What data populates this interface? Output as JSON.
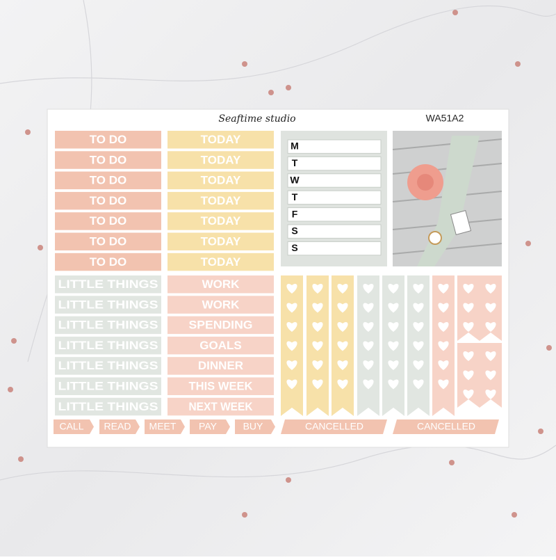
{
  "header": {
    "brand": "Seaftime studio",
    "code": "WA51A2"
  },
  "to_do": [
    "TO DO",
    "TO DO",
    "TO DO",
    "TO DO",
    "TO DO",
    "TO DO",
    "TO DO"
  ],
  "today": [
    "TODAY",
    "TODAY",
    "TODAY",
    "TODAY",
    "TODAY",
    "TODAY",
    "TODAY"
  ],
  "weekdays": [
    "M",
    "T",
    "W",
    "T",
    "F",
    "S",
    "S"
  ],
  "little_things": [
    "LITTLE THINGS",
    "LITTLE THINGS",
    "LITTLE THINGS",
    "LITTLE THINGS",
    "LITTLE THINGS",
    "LITTLE THINGS",
    "LITTLE THINGS"
  ],
  "labels": [
    "WORK",
    "WORK",
    "SPENDING",
    "GOALS",
    "DINNER",
    "THIS WEEK",
    "NEXT WEEK"
  ],
  "tabs": [
    "CALL",
    "READ",
    "MEET",
    "PAY",
    "BUY"
  ],
  "cancelled": [
    "CANCELLED",
    "CANCELLED"
  ]
}
